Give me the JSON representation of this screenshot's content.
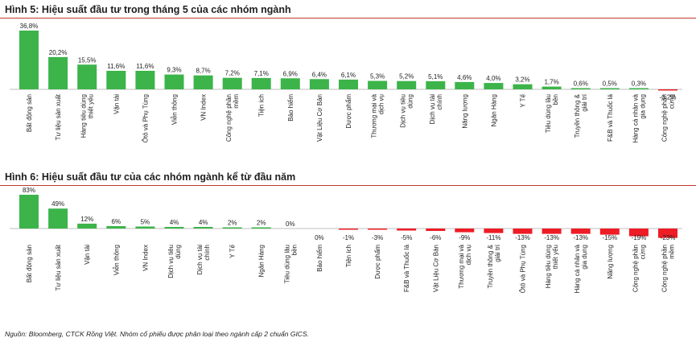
{
  "figure5": {
    "title": "Hình 5: Hiệu suất đầu tư trong tháng 5 của các nhóm ngành"
  },
  "figure6": {
    "title": "Hình 6: Hiệu suất đầu tư của các nhóm ngành kể từ đầu năm"
  },
  "footer": {
    "source": "Nguồn: Bloomberg, CTCK Rồng Việt. Nhóm cổ phiếu được phân loại theo ngành cấp 2 chuẩn GICS."
  },
  "colors": {
    "positive": "#3cb44a",
    "negative": "#ee1c25",
    "rule": "#c0392b"
  },
  "chart_data": [
    {
      "type": "bar",
      "title": "Hình 5: Hiệu suất đầu tư trong tháng 5 của các nhóm ngành",
      "xlabel": "",
      "ylabel": "",
      "categories": [
        "Bất động sản",
        "Tư liệu sản xuất",
        "Hàng tiêu dùng thiết yếu",
        "Vận tải",
        "Ôtô và Phụ Tùng",
        "Viễn thông",
        "VN Index",
        "Công nghệ phần mềm",
        "Tiện ích",
        "Bảo hiểm",
        "Vật Liệu Cơ Bản",
        "Dược phẩm",
        "Thương mại và dịch vụ",
        "Dịch vụ tiêu dùng",
        "Dịch vụ tài chính",
        "Năng lượng",
        "Ngân Hàng",
        "Y Tế",
        "Tiêu dùng lâu bền",
        "Truyền thông & giải trí",
        "F&B và Thuốc lá",
        "Hàng cá nhân và gia dụng",
        "Công nghệ phần cứng"
      ],
      "values": [
        36.8,
        20.2,
        15.5,
        11.6,
        11.6,
        9.3,
        8.7,
        7.2,
        7.1,
        6.9,
        6.4,
        6.1,
        5.3,
        5.2,
        5.1,
        4.6,
        4.0,
        3.2,
        1.7,
        0.6,
        0.5,
        0.3,
        -0.2
      ],
      "value_labels": [
        "36,8%",
        "20,2%",
        "15,5%",
        "11,6%",
        "11,6%",
        "9,3%",
        "8,7%",
        "7,2%",
        "7,1%",
        "6,9%",
        "6,4%",
        "6,1%",
        "5,3%",
        "5,2%",
        "5,1%",
        "4,6%",
        "4,0%",
        "3,2%",
        "1,7%",
        "0,6%",
        "0,5%",
        "0,3%",
        "-0,2%"
      ],
      "ylim": [
        -1,
        37
      ],
      "grid": false,
      "legend": "none"
    },
    {
      "type": "bar",
      "title": "Hình 6: Hiệu suất đầu tư của các nhóm ngành kể từ đầu năm",
      "xlabel": "",
      "ylabel": "",
      "categories": [
        "Bất động sản",
        "Tư liệu sản xuất",
        "Vận tải",
        "Viễn thông",
        "VN Index",
        "Dịch vụ tiêu dùng",
        "Dịch vụ tài chính",
        "Y Tế",
        "Ngân Hàng",
        "Tiêu dùng lâu bền",
        "Bảo hiểm",
        "Tiện ích",
        "Dược phẩm",
        "F&B và Thuốc lá",
        "Vật Liệu Cơ Bản",
        "Thương mại và dịch vụ",
        "Truyền thông & giải trí",
        "Ôtô và Phụ Tùng",
        "Hàng tiêu dùng thiết yếu",
        "Hàng cá nhân và gia dụng",
        "Năng lượng",
        "Công nghệ phần cứng",
        "Công nghệ phần mềm"
      ],
      "values": [
        83,
        49,
        12,
        6,
        5,
        4,
        4,
        2,
        2,
        0,
        0,
        -1,
        -3,
        -5,
        -6,
        -9,
        -11,
        -13,
        -13,
        -13,
        -15,
        -19,
        -23
      ],
      "value_labels": [
        "83%",
        "49%",
        "12%",
        "6%",
        "5%",
        "4%",
        "4%",
        "2%",
        "2%",
        "0%",
        "0%",
        "-1%",
        "-3%",
        "-5%",
        "-6%",
        "-9%",
        "-11%",
        "-13%",
        "-13%",
        "-13%",
        "-15%",
        "-19%",
        "-23%"
      ],
      "ylim": [
        -25,
        85
      ],
      "grid": false,
      "legend": "none"
    }
  ]
}
